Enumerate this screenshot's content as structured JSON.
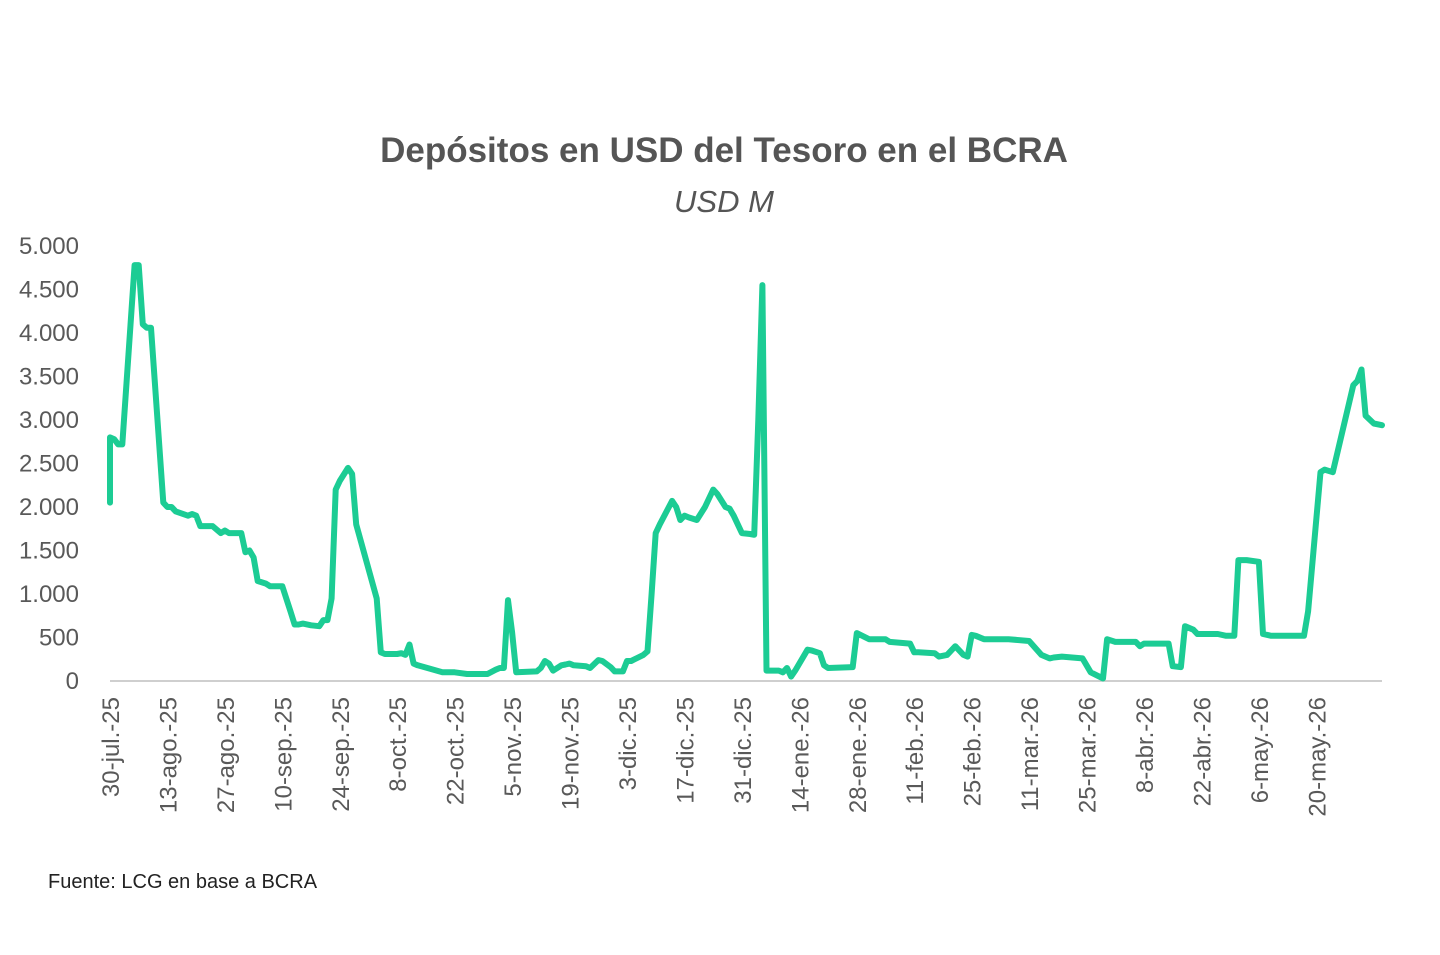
{
  "chart_data": {
    "type": "line",
    "title": "Depósitos en USD del Tesoro en el BCRA",
    "subtitle": "USD M",
    "xlabel": "",
    "ylabel": "",
    "ylim": [
      0,
      5000
    ],
    "yticks": [
      0,
      500,
      1000,
      1500,
      2000,
      2500,
      3000,
      3500,
      4000,
      4500,
      5000
    ],
    "ytick_labels": [
      "0",
      "500",
      "1.000",
      "1.500",
      "2.000",
      "2.500",
      "3.000",
      "3.500",
      "4.000",
      "4.500",
      "5.000"
    ],
    "xlim": [
      "2025-07-30",
      "2026-06-05"
    ],
    "xticks": [
      {
        "date": "2025-07-30",
        "label": "30-jul.-25"
      },
      {
        "date": "2025-08-13",
        "label": "13-ago.-25"
      },
      {
        "date": "2025-08-27",
        "label": "27-ago.-25"
      },
      {
        "date": "2025-09-10",
        "label": "10-sep.-25"
      },
      {
        "date": "2025-09-24",
        "label": "24-sep.-25"
      },
      {
        "date": "2025-10-08",
        "label": "8-oct.-25"
      },
      {
        "date": "2025-10-22",
        "label": "22-oct.-25"
      },
      {
        "date": "2025-11-05",
        "label": "5-nov.-25"
      },
      {
        "date": "2025-11-19",
        "label": "19-nov.-25"
      },
      {
        "date": "2025-12-03",
        "label": "3-dic.-25"
      },
      {
        "date": "2025-12-17",
        "label": "17-dic.-25"
      },
      {
        "date": "2025-12-31",
        "label": "31-dic.-25"
      },
      {
        "date": "2026-01-14",
        "label": "14-ene.-26"
      },
      {
        "date": "2026-01-28",
        "label": "28-ene.-26"
      },
      {
        "date": "2026-02-11",
        "label": "11-feb.-26"
      },
      {
        "date": "2026-02-25",
        "label": "25-feb.-26"
      },
      {
        "date": "2026-03-11",
        "label": "11-mar.-26"
      },
      {
        "date": "2026-03-25",
        "label": "25-mar.-26"
      },
      {
        "date": "2026-04-08",
        "label": "8-abr.-26"
      },
      {
        "date": "2026-04-22",
        "label": "22-abr.-26"
      },
      {
        "date": "2026-05-06",
        "label": "6-may.-26"
      },
      {
        "date": "2026-05-20",
        "label": "20-may.-26"
      }
    ],
    "grid": false,
    "legend": "none",
    "series": [
      {
        "color": "#1ccc94",
        "points": [
          [
            "2025-07-30",
            2050
          ],
          [
            "2025-07-30",
            2800
          ],
          [
            "2025-07-31",
            2780
          ],
          [
            "2025-08-01",
            2720
          ],
          [
            "2025-08-02",
            2720
          ],
          [
            "2025-08-05",
            4780
          ],
          [
            "2025-08-06",
            4780
          ],
          [
            "2025-08-07",
            4100
          ],
          [
            "2025-08-08",
            4060
          ],
          [
            "2025-08-09",
            4060
          ],
          [
            "2025-08-12",
            2050
          ],
          [
            "2025-08-13",
            2000
          ],
          [
            "2025-08-14",
            2000
          ],
          [
            "2025-08-15",
            1950
          ],
          [
            "2025-08-18",
            1900
          ],
          [
            "2025-08-19",
            1920
          ],
          [
            "2025-08-20",
            1900
          ],
          [
            "2025-08-21",
            1780
          ],
          [
            "2025-08-24",
            1780
          ],
          [
            "2025-08-25",
            1740
          ],
          [
            "2025-08-26",
            1700
          ],
          [
            "2025-08-27",
            1730
          ],
          [
            "2025-08-28",
            1700
          ],
          [
            "2025-08-31",
            1700
          ],
          [
            "2025-09-01",
            1480
          ],
          [
            "2025-09-02",
            1500
          ],
          [
            "2025-09-03",
            1420
          ],
          [
            "2025-09-04",
            1150
          ],
          [
            "2025-09-06",
            1120
          ],
          [
            "2025-09-07",
            1090
          ],
          [
            "2025-09-10",
            1090
          ],
          [
            "2025-09-12",
            800
          ],
          [
            "2025-09-13",
            650
          ],
          [
            "2025-09-14",
            650
          ],
          [
            "2025-09-15",
            660
          ],
          [
            "2025-09-17",
            640
          ],
          [
            "2025-09-19",
            630
          ],
          [
            "2025-09-20",
            700
          ],
          [
            "2025-09-21",
            700
          ],
          [
            "2025-09-22",
            950
          ],
          [
            "2025-09-23",
            2200
          ],
          [
            "2025-09-24",
            2300
          ],
          [
            "2025-09-26",
            2450
          ],
          [
            "2025-09-27",
            2380
          ],
          [
            "2025-09-28",
            1800
          ],
          [
            "2025-10-03",
            950
          ],
          [
            "2025-10-04",
            330
          ],
          [
            "2025-10-05",
            310
          ],
          [
            "2025-10-08",
            310
          ],
          [
            "2025-10-09",
            320
          ],
          [
            "2025-10-10",
            300
          ],
          [
            "2025-10-11",
            420
          ],
          [
            "2025-10-12",
            200
          ],
          [
            "2025-10-13",
            180
          ],
          [
            "2025-10-16",
            140
          ],
          [
            "2025-10-19",
            100
          ],
          [
            "2025-10-22",
            100
          ],
          [
            "2025-10-25",
            80
          ],
          [
            "2025-10-30",
            80
          ],
          [
            "2025-11-01",
            130
          ],
          [
            "2025-11-02",
            150
          ],
          [
            "2025-11-03",
            150
          ],
          [
            "2025-11-04",
            930
          ],
          [
            "2025-11-05",
            560
          ],
          [
            "2025-11-06",
            100
          ],
          [
            "2025-11-11",
            110
          ],
          [
            "2025-11-12",
            150
          ],
          [
            "2025-11-13",
            230
          ],
          [
            "2025-11-14",
            200
          ],
          [
            "2025-11-15",
            120
          ],
          [
            "2025-11-17",
            180
          ],
          [
            "2025-11-18",
            190
          ],
          [
            "2025-11-19",
            200
          ],
          [
            "2025-11-20",
            180
          ],
          [
            "2025-11-23",
            170
          ],
          [
            "2025-11-24",
            150
          ],
          [
            "2025-11-26",
            240
          ],
          [
            "2025-11-27",
            230
          ],
          [
            "2025-11-29",
            160
          ],
          [
            "2025-11-30",
            110
          ],
          [
            "2025-12-02",
            110
          ],
          [
            "2025-12-03",
            230
          ],
          [
            "2025-12-04",
            230
          ],
          [
            "2025-12-07",
            300
          ],
          [
            "2025-12-08",
            340
          ],
          [
            "2025-12-09",
            1000
          ],
          [
            "2025-12-10",
            1700
          ],
          [
            "2025-12-11",
            1800
          ],
          [
            "2025-12-14",
            2070
          ],
          [
            "2025-12-15",
            2000
          ],
          [
            "2025-12-16",
            1850
          ],
          [
            "2025-12-17",
            1900
          ],
          [
            "2025-12-18",
            1880
          ],
          [
            "2025-12-20",
            1850
          ],
          [
            "2025-12-22",
            2000
          ],
          [
            "2025-12-24",
            2200
          ],
          [
            "2025-12-25",
            2150
          ],
          [
            "2025-12-27",
            2000
          ],
          [
            "2025-12-28",
            1980
          ],
          [
            "2025-12-29",
            1900
          ],
          [
            "2025-12-31",
            1700
          ],
          [
            "2026-01-02",
            1690
          ],
          [
            "2026-01-03",
            1680
          ],
          [
            "2026-01-04",
            3000
          ],
          [
            "2026-01-05",
            4550
          ],
          [
            "2026-01-06",
            120
          ],
          [
            "2026-01-07",
            120
          ],
          [
            "2026-01-09",
            120
          ],
          [
            "2026-01-10",
            100
          ],
          [
            "2026-01-11",
            150
          ],
          [
            "2026-01-12",
            50
          ],
          [
            "2026-01-13",
            120
          ],
          [
            "2026-01-16",
            360
          ],
          [
            "2026-01-17",
            350
          ],
          [
            "2026-01-19",
            320
          ],
          [
            "2026-01-20",
            180
          ],
          [
            "2026-01-21",
            150
          ],
          [
            "2026-01-27",
            160
          ],
          [
            "2026-01-28",
            550
          ],
          [
            "2026-01-31",
            480
          ],
          [
            "2026-02-04",
            480
          ],
          [
            "2026-02-05",
            450
          ],
          [
            "2026-02-10",
            430
          ],
          [
            "2026-02-11",
            330
          ],
          [
            "2026-02-12",
            330
          ],
          [
            "2026-02-16",
            320
          ],
          [
            "2026-02-17",
            280
          ],
          [
            "2026-02-19",
            300
          ],
          [
            "2026-02-21",
            400
          ],
          [
            "2026-02-23",
            300
          ],
          [
            "2026-02-24",
            280
          ],
          [
            "2026-02-25",
            530
          ],
          [
            "2026-02-26",
            520
          ],
          [
            "2026-02-28",
            480
          ],
          [
            "2026-03-06",
            480
          ],
          [
            "2026-03-11",
            460
          ],
          [
            "2026-03-14",
            300
          ],
          [
            "2026-03-16",
            260
          ],
          [
            "2026-03-17",
            270
          ],
          [
            "2026-03-19",
            280
          ],
          [
            "2026-03-24",
            260
          ],
          [
            "2026-03-26",
            100
          ],
          [
            "2026-03-29",
            30
          ],
          [
            "2026-03-30",
            480
          ],
          [
            "2026-04-01",
            450
          ],
          [
            "2026-04-06",
            450
          ],
          [
            "2026-04-07",
            400
          ],
          [
            "2026-04-08",
            430
          ],
          [
            "2026-04-10",
            430
          ],
          [
            "2026-04-14",
            430
          ],
          [
            "2026-04-15",
            170
          ],
          [
            "2026-04-17",
            160
          ],
          [
            "2026-04-18",
            630
          ],
          [
            "2026-04-20",
            590
          ],
          [
            "2026-04-21",
            540
          ],
          [
            "2026-04-26",
            540
          ],
          [
            "2026-04-28",
            520
          ],
          [
            "2026-04-30",
            520
          ],
          [
            "2026-05-01",
            1390
          ],
          [
            "2026-05-03",
            1390
          ],
          [
            "2026-05-06",
            1370
          ],
          [
            "2026-05-07",
            540
          ],
          [
            "2026-05-09",
            520
          ],
          [
            "2026-05-17",
            520
          ],
          [
            "2026-05-18",
            800
          ],
          [
            "2026-05-21",
            2400
          ],
          [
            "2026-05-22",
            2430
          ],
          [
            "2026-05-24",
            2400
          ],
          [
            "2026-05-29",
            3400
          ],
          [
            "2026-05-30",
            3450
          ],
          [
            "2026-05-31",
            3580
          ],
          [
            "2026-06-01",
            3050
          ],
          [
            "2026-06-03",
            2960
          ],
          [
            "2026-06-05",
            2940
          ]
        ]
      }
    ]
  },
  "source": "Fuente: LCG en base a BCRA"
}
